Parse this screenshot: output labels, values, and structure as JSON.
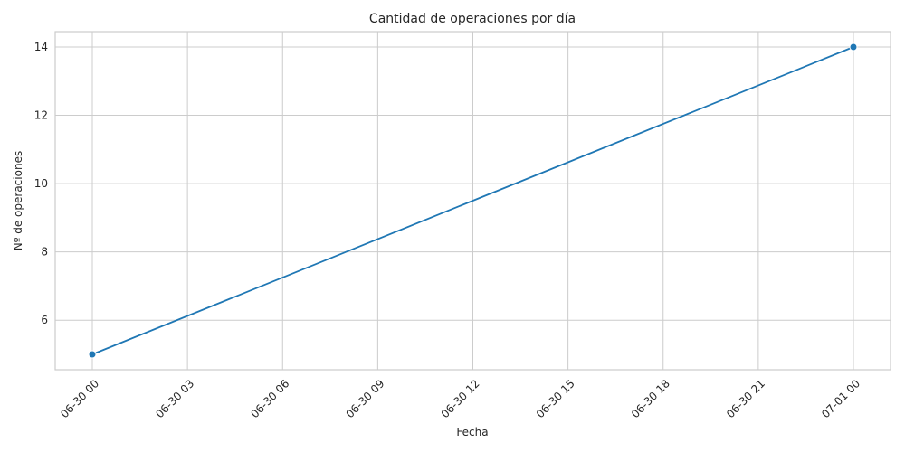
{
  "chart_data": {
    "type": "line",
    "title": "Cantidad de operaciones por día",
    "xlabel": "Fecha",
    "ylabel": "Nº de operaciones",
    "x_ticks": [
      "06-30 00",
      "06-30 03",
      "06-30 06",
      "06-30 09",
      "06-30 12",
      "06-30 15",
      "06-30 18",
      "06-30 21",
      "07-01 00"
    ],
    "y_ticks": [
      "6",
      "8",
      "10",
      "12",
      "14"
    ],
    "ylim": [
      4.55,
      14.45
    ],
    "grid": true,
    "marker": "circle",
    "series": [
      {
        "x": [
          "06-30 00",
          "07-01 00"
        ],
        "y": [
          5,
          14
        ]
      }
    ],
    "colors": {
      "line": "#1f77b4",
      "grid": "#cccccc"
    }
  }
}
